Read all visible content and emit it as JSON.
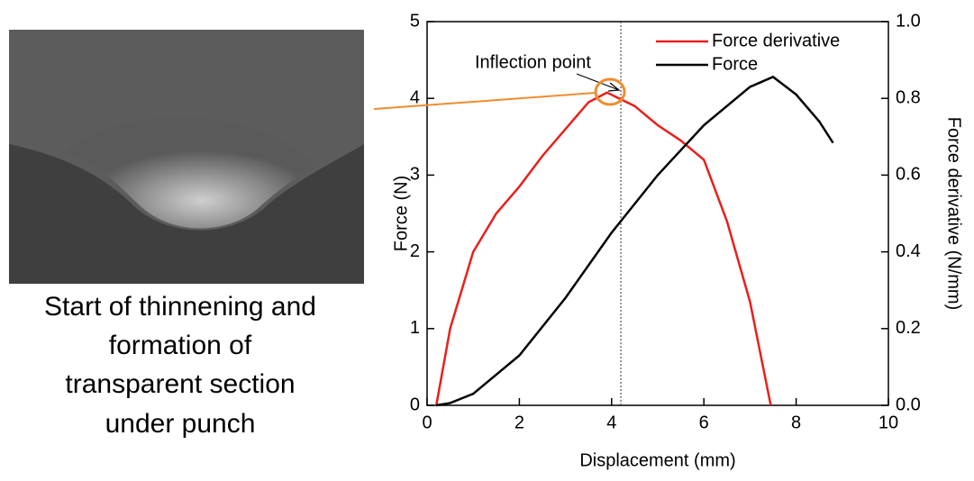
{
  "image_caption": [
    "Start of thinnening and",
    "formation of",
    "transparent section",
    "under punch"
  ],
  "chart_data": {
    "type": "line",
    "xlabel": "Displacement (mm)",
    "ylabel": "Force (N)",
    "y2label": "Force derivative (N/mm)",
    "xlim": [
      0,
      10
    ],
    "xticks": [
      0,
      2,
      4,
      6,
      8,
      10
    ],
    "ylim": [
      0,
      5
    ],
    "yticks": [
      0,
      1,
      2,
      3,
      4,
      5
    ],
    "y2lim": [
      0,
      1
    ],
    "y2ticks": [
      {
        "value": 0,
        "label": "0.0"
      },
      0.2,
      0.4,
      0.6,
      0.8,
      {
        "value": 1,
        "label": "1.0"
      }
    ],
    "legend": "upper right",
    "annotation": {
      "text": "Inflection point",
      "x": 4.2
    },
    "series": [
      {
        "name": "Force derivative",
        "color": "#e8201c",
        "axis": "y2",
        "x": [
          0.2,
          0.5,
          1,
          1.5,
          2,
          2.5,
          3,
          3.5,
          3.9,
          4.5,
          5,
          5.5,
          6,
          6.5,
          7,
          7.45
        ],
        "values": [
          0,
          0.2,
          0.4,
          0.5,
          0.57,
          0.65,
          0.72,
          0.79,
          0.815,
          0.78,
          0.73,
          0.69,
          0.64,
          0.48,
          0.27,
          0
        ]
      },
      {
        "name": "Force",
        "color": "#000000",
        "x": [
          0.2,
          0.5,
          1,
          2,
          3,
          4,
          5,
          6,
          7,
          7.5,
          8,
          8.5,
          8.8
        ],
        "values": [
          0,
          0.03,
          0.15,
          0.65,
          1.4,
          2.25,
          3.0,
          3.65,
          4.15,
          4.28,
          4.05,
          3.7,
          3.42
        ]
      }
    ]
  }
}
